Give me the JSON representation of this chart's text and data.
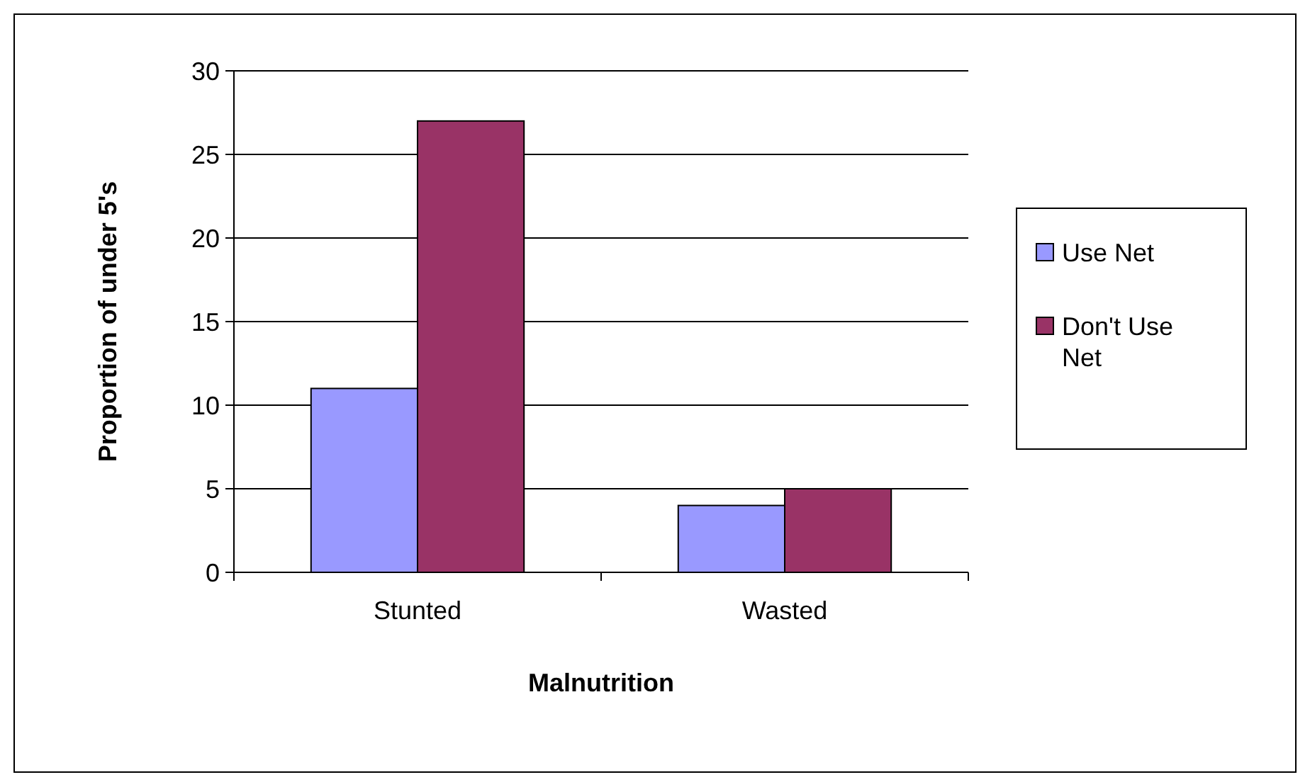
{
  "chart_data": {
    "type": "bar",
    "xlabel": "Malnutrition",
    "ylabel": "Proportion of under 5's",
    "categories": [
      "Stunted",
      "Wasted"
    ],
    "series": [
      {
        "name": "Use Net",
        "color": "#9999ff",
        "values": [
          11,
          4
        ]
      },
      {
        "name": "Don't Use Net",
        "color": "#993366",
        "values": [
          27,
          5
        ]
      }
    ],
    "ylim": [
      0,
      30
    ],
    "yticks": [
      0,
      5,
      10,
      15,
      20,
      25,
      30
    ],
    "grid": "y",
    "legend": "right"
  }
}
